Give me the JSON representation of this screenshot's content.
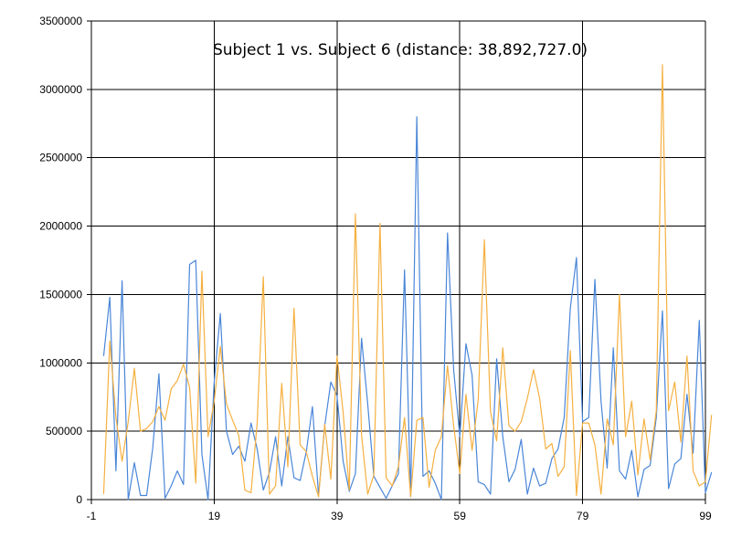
{
  "chart_data": {
    "type": "line",
    "title": "Subject 1 vs. Subject 6 (distance: 38,892,727.0)",
    "xlabel": "",
    "ylabel": "",
    "xlim": [
      -1,
      99
    ],
    "ylim": [
      0,
      3500000
    ],
    "x_ticks": [
      -1,
      19,
      39,
      59,
      79,
      99
    ],
    "y_ticks": [
      0,
      500000,
      1000000,
      1500000,
      2000000,
      2500000,
      3000000,
      3500000
    ],
    "x_tick_labels": [
      "-1",
      "19",
      "39",
      "59",
      "79",
      "99"
    ],
    "y_tick_labels": [
      "0",
      "500000",
      "1000000",
      "1500000",
      "2000000",
      "2500000",
      "3000000",
      "3500000"
    ],
    "grid": true,
    "legend": "none",
    "series": [
      {
        "color": "#4a86d8",
        "values": [
          1050000,
          1480000,
          210000,
          1600000,
          0,
          270000,
          30000,
          30000,
          380000,
          920000,
          10000,
          100000,
          210000,
          110000,
          1720000,
          1750000,
          330000,
          0,
          860000,
          1360000,
          500000,
          330000,
          390000,
          280000,
          560000,
          370000,
          70000,
          200000,
          460000,
          100000,
          460000,
          160000,
          140000,
          350000,
          680000,
          30000,
          540000,
          860000,
          760000,
          280000,
          60000,
          190000,
          1180000,
          700000,
          170000,
          90000,
          10000,
          100000,
          190000,
          1680000,
          20000,
          2800000,
          170000,
          210000,
          120000,
          0,
          1950000,
          950000,
          460000,
          1140000,
          910000,
          130000,
          110000,
          40000,
          1030000,
          460000,
          130000,
          220000,
          440000,
          40000,
          230000,
          100000,
          120000,
          300000,
          370000,
          600000,
          1400000,
          1770000,
          570000,
          600000,
          1610000,
          720000,
          230000,
          1110000,
          210000,
          150000,
          360000,
          20000,
          220000,
          250000,
          600000,
          1380000,
          80000,
          260000,
          300000,
          770000,
          340000,
          1310000,
          50000,
          200000
        ]
      },
      {
        "color": "#f5b041",
        "values": [
          40000,
          1160000,
          600000,
          280000,
          570000,
          960000,
          500000,
          520000,
          570000,
          680000,
          580000,
          810000,
          870000,
          990000,
          820000,
          120000,
          1670000,
          460000,
          720000,
          1120000,
          700000,
          580000,
          470000,
          70000,
          50000,
          560000,
          1630000,
          40000,
          100000,
          850000,
          240000,
          1400000,
          400000,
          350000,
          170000,
          20000,
          550000,
          150000,
          1050000,
          640000,
          70000,
          2090000,
          470000,
          40000,
          180000,
          2020000,
          160000,
          100000,
          240000,
          600000,
          20000,
          580000,
          600000,
          90000,
          360000,
          460000,
          980000,
          540000,
          190000,
          770000,
          360000,
          730000,
          1900000,
          640000,
          430000,
          1110000,
          540000,
          500000,
          570000,
          740000,
          950000,
          740000,
          370000,
          410000,
          170000,
          240000,
          1090000,
          30000,
          560000,
          560000,
          400000,
          40000,
          590000,
          400000,
          1500000,
          460000,
          720000,
          180000,
          590000,
          290000,
          650000,
          3180000,
          650000,
          860000,
          420000,
          1050000,
          210000,
          100000,
          130000,
          620000
        ]
      }
    ]
  }
}
